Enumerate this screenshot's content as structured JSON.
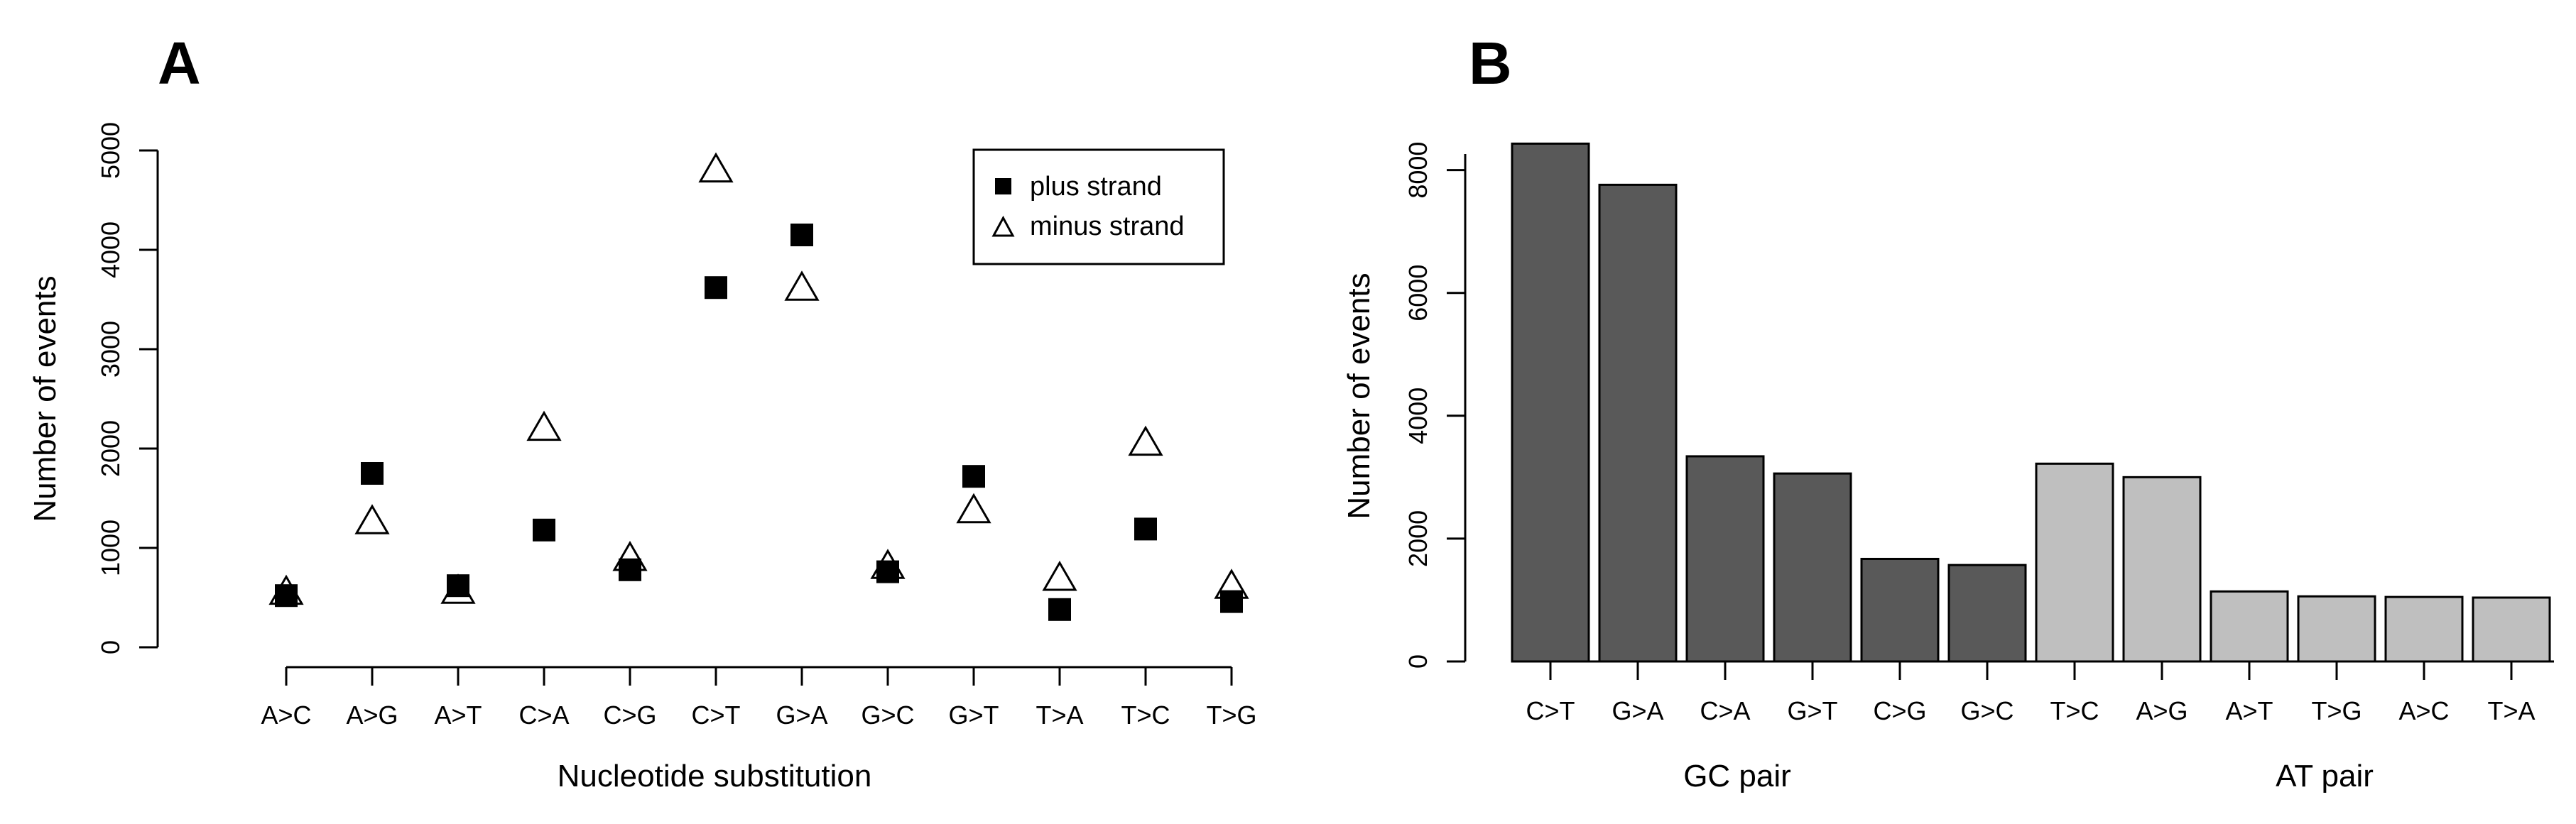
{
  "colors": {
    "gc_bar": "#595959",
    "at_bar": "#bfbfbf",
    "marker_fill": "#000000",
    "background": "#ffffff"
  },
  "chart_data": [
    {
      "type": "scatter",
      "panel_label": "A",
      "title": "",
      "xlabel": "Nucleotide substitution",
      "ylabel": "Number of events",
      "ylim": [
        0,
        5000
      ],
      "yticks": [
        "0",
        "1000",
        "2000",
        "3000",
        "4000",
        "5000"
      ],
      "categories": [
        "A>C",
        "A>G",
        "A>T",
        "C>A",
        "C>G",
        "C>T",
        "G>A",
        "G>C",
        "G>T",
        "T>A",
        "T>C",
        "T>G"
      ],
      "series": [
        {
          "name": "plus strand",
          "marker": "filled-square",
          "values": [
            520,
            1750,
            620,
            1180,
            780,
            3620,
            4150,
            760,
            1720,
            380,
            1190,
            460
          ]
        },
        {
          "name": "minus strand",
          "marker": "open-triangle",
          "values": [
            560,
            1270,
            570,
            2210,
            900,
            4810,
            3620,
            820,
            1380,
            700,
            2060,
            620
          ]
        }
      ],
      "legend_position": "top-right"
    },
    {
      "type": "bar",
      "panel_label": "B",
      "title": "",
      "xlabel": "",
      "ylabel": "Number of events",
      "ylim": [
        0,
        8500
      ],
      "yticks": [
        "0",
        "2000",
        "4000",
        "6000",
        "8000"
      ],
      "categories": [
        "C>T",
        "G>A",
        "C>A",
        "G>T",
        "C>G",
        "G>C",
        "T>C",
        "A>G",
        "A>T",
        "T>G",
        "A>C",
        "T>A"
      ],
      "values": [
        8430,
        7760,
        3340,
        3060,
        1670,
        1570,
        3220,
        3000,
        1140,
        1060,
        1050,
        1040
      ],
      "groups": [
        {
          "label": "GC pair",
          "categories": [
            "C>T",
            "G>A",
            "C>A",
            "G>T",
            "C>G",
            "G>C"
          ]
        },
        {
          "label": "AT pair",
          "categories": [
            "T>C",
            "A>G",
            "A>T",
            "T>G",
            "A>C",
            "T>A"
          ]
        }
      ]
    }
  ]
}
